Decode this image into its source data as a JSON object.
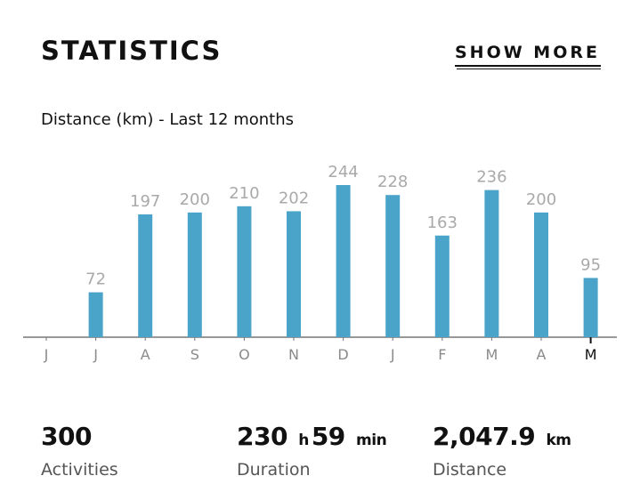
{
  "header": {
    "title": "STATISTICS",
    "show_more": "SHOW MORE"
  },
  "subtitle": "Distance (km) - Last 12 months",
  "colors": {
    "bar": "#4aa3c8",
    "value_label": "#a9a9a9",
    "axis": "#777777"
  },
  "chart_data": {
    "type": "bar",
    "title": "Distance (km) - Last 12 months",
    "categories": [
      "J",
      "J",
      "A",
      "S",
      "O",
      "N",
      "D",
      "J",
      "F",
      "M",
      "A",
      "M"
    ],
    "values": [
      0,
      72,
      197,
      200,
      210,
      202,
      244,
      228,
      163,
      236,
      200,
      95
    ],
    "value_labels": [
      "",
      "72",
      "197",
      "200",
      "210",
      "202",
      "244",
      "228",
      "163",
      "236",
      "200",
      "95"
    ],
    "ylim": [
      0,
      244
    ],
    "grid": false,
    "highlighted_category_index": 11
  },
  "stats": [
    {
      "value": "300",
      "parts": [
        {
          "text": "300",
          "unit": false
        }
      ],
      "label": "Activities"
    },
    {
      "value": "230 h 59 min",
      "parts": [
        {
          "text": "230",
          "unit": false
        },
        {
          "text": "h",
          "unit": true
        },
        {
          "text": "59",
          "unit": false
        },
        {
          "text": "min",
          "unit": true
        }
      ],
      "label": "Duration"
    },
    {
      "value": "2,047.9 km",
      "parts": [
        {
          "text": "2,047.9",
          "unit": false
        },
        {
          "text": "km",
          "unit": true
        }
      ],
      "label": "Distance"
    }
  ]
}
